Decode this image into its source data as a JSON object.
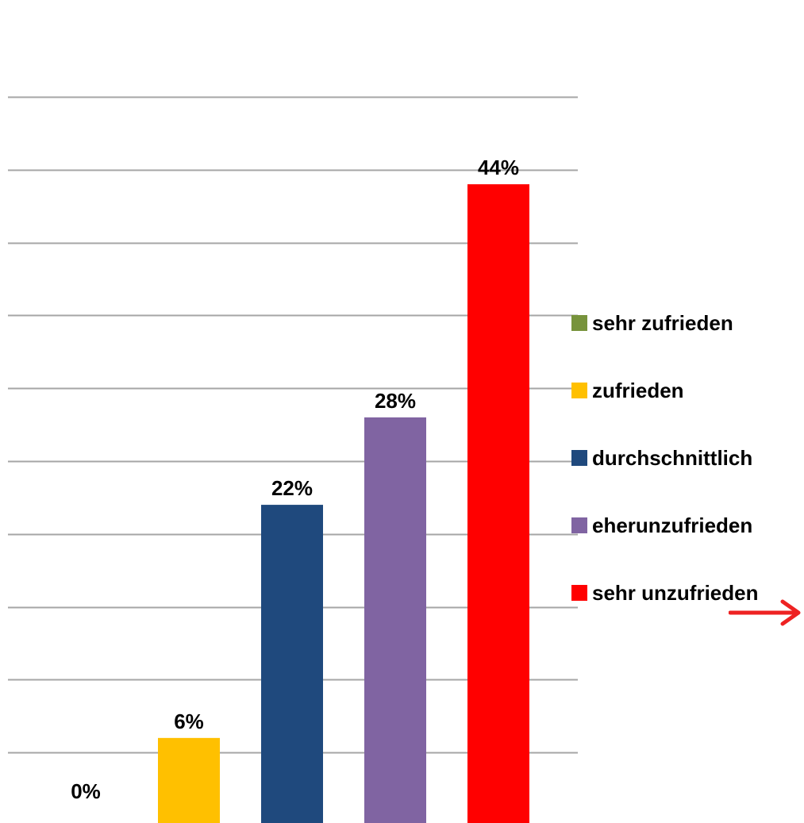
{
  "chart_data": {
    "type": "bar",
    "title": "",
    "xlabel": "",
    "ylabel": "",
    "ylim": [
      0,
      50
    ],
    "grid": true,
    "legend_position": "right",
    "categories": [
      "sehr zufrieden",
      "zufrieden",
      "durchschnittlich",
      "eherunzufrieden",
      "sehr unzufrieden"
    ],
    "values": [
      0,
      6,
      22,
      28,
      44
    ],
    "data_labels": [
      "0%",
      "6%",
      "22%",
      "28%",
      "44%"
    ],
    "colors": [
      "#77933C",
      "#FFC000",
      "#1F497D",
      "#8064A2",
      "#FF0000"
    ],
    "gridline_color": "#A6A6A6",
    "legend": [
      {
        "label": "sehr zufrieden",
        "color": "#77933C"
      },
      {
        "label": "zufrieden",
        "color": "#FFC000"
      },
      {
        "label": "durchschnittlich",
        "color": "#1F497D"
      },
      {
        "label": "eherunzufrieden",
        "color": "#8064A2"
      },
      {
        "label": "sehr unzufrieden",
        "color": "#FF0000"
      }
    ]
  },
  "annotation": {
    "arrow_icon": "arrow-right-icon",
    "color": "#EE2222"
  }
}
